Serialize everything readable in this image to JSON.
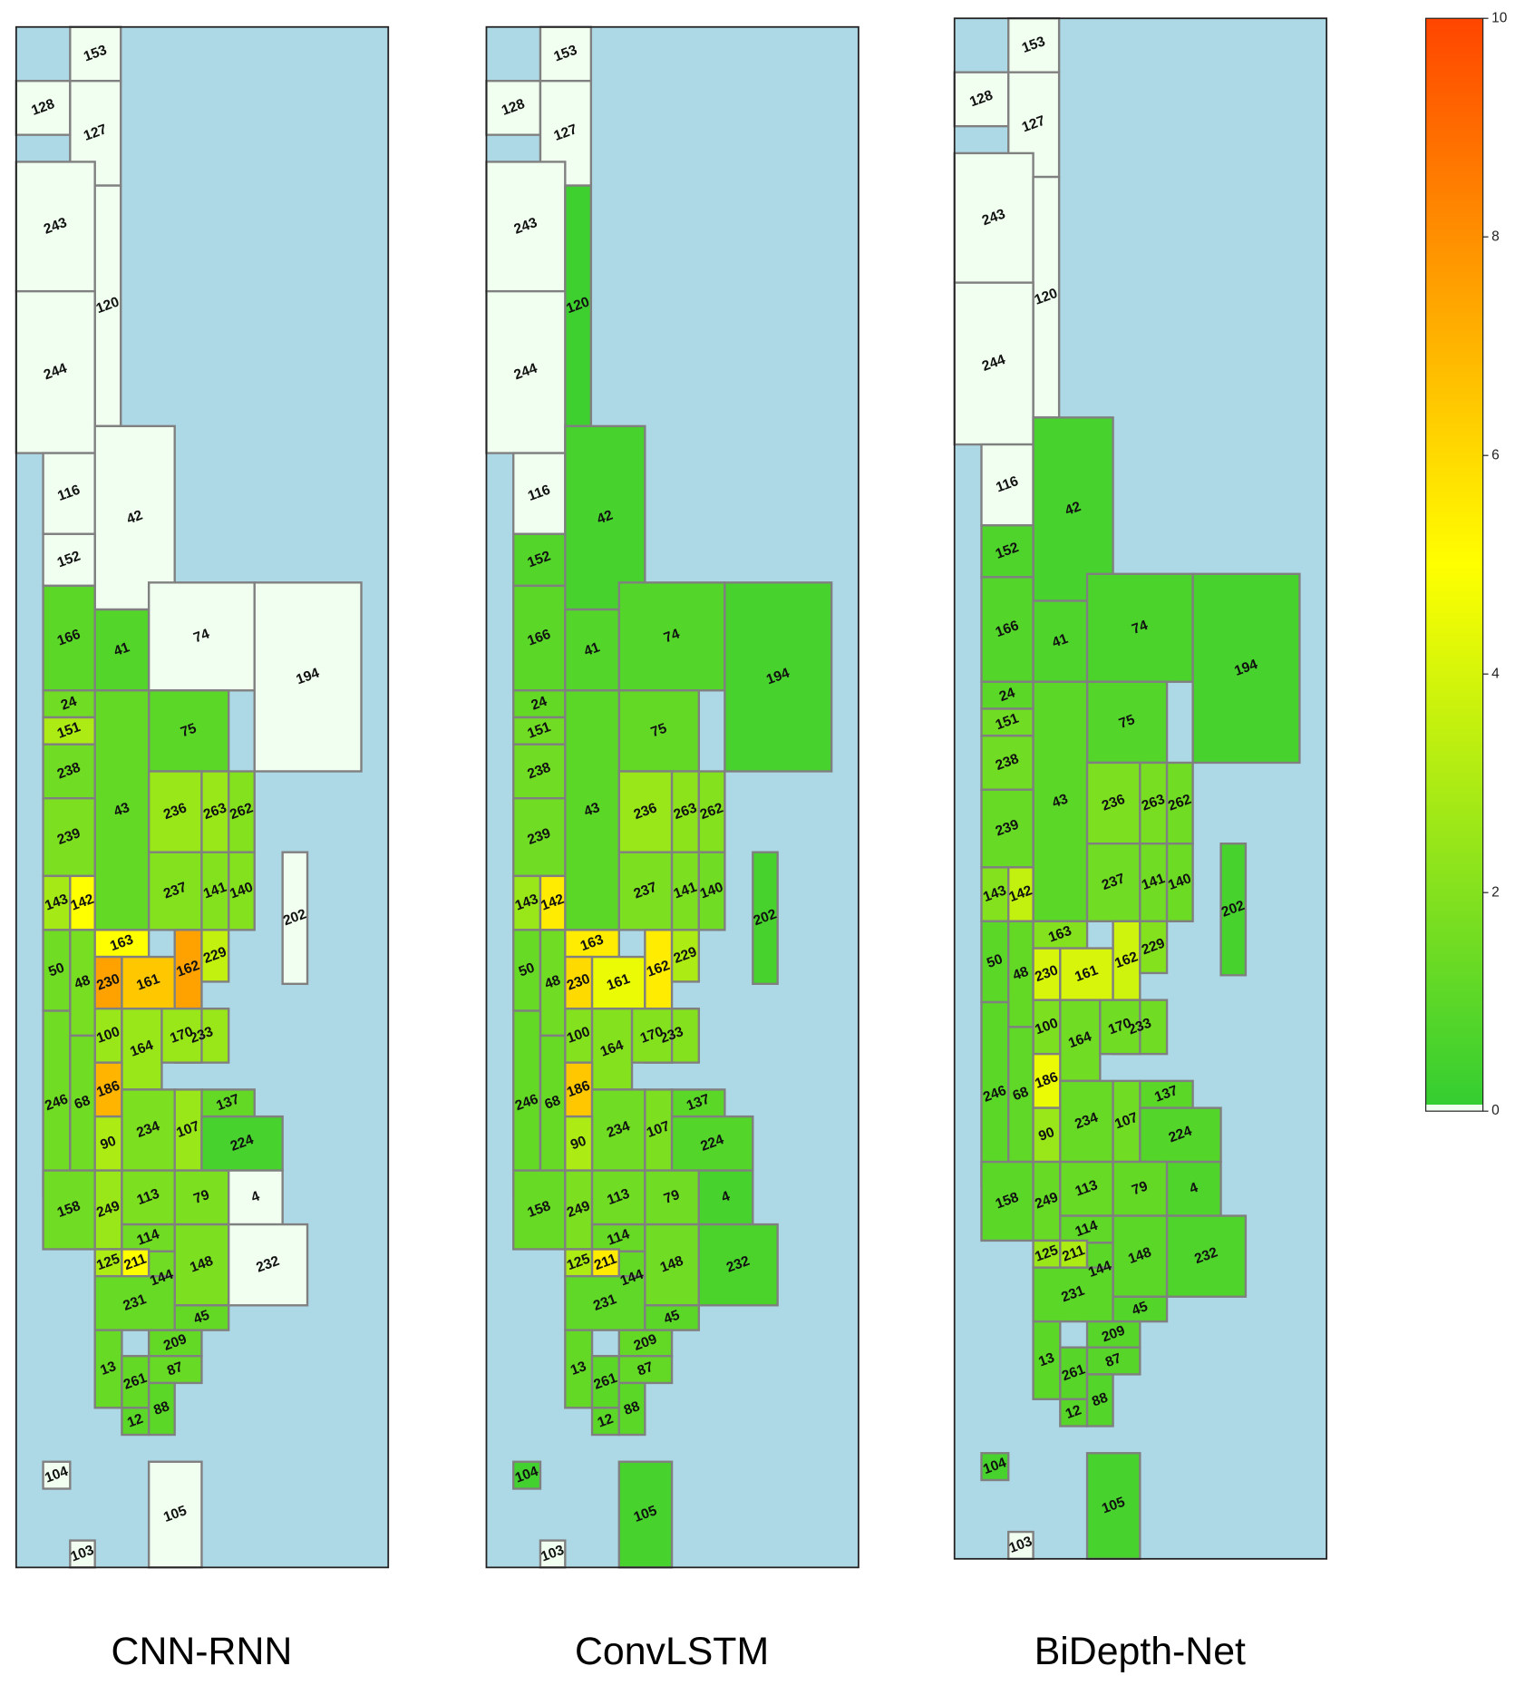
{
  "chart_data": {
    "type": "zone-map",
    "zones": [
      "153",
      "128",
      "127",
      "243",
      "120",
      "244",
      "116",
      "42",
      "152",
      "166",
      "41",
      "74",
      "194",
      "24",
      "151",
      "75",
      "238",
      "43",
      "236",
      "263",
      "262",
      "239",
      "237",
      "141",
      "140",
      "202",
      "143",
      "142",
      "50",
      "48",
      "163",
      "230",
      "161",
      "162",
      "229",
      "233",
      "100",
      "164",
      "170",
      "246",
      "68",
      "186",
      "137",
      "234",
      "107",
      "90",
      "224",
      "158",
      "249",
      "113",
      "79",
      "4",
      "114",
      "125",
      "211",
      "144",
      "148",
      "232",
      "231",
      "45",
      "209",
      "13",
      "261",
      "87",
      "12",
      "88",
      "104",
      "105",
      "103"
    ],
    "panels": [
      {
        "title": "CNN-RNN",
        "values": [
          0,
          0,
          0,
          0,
          0,
          0,
          0,
          0,
          0,
          1,
          0.8,
          0,
          0,
          1.5,
          3,
          1,
          1.5,
          1.2,
          2.5,
          2.5,
          2,
          1.8,
          2,
          2,
          2,
          0,
          2.8,
          5,
          1.5,
          1.7,
          5,
          7.5,
          6.5,
          7.5,
          3.5,
          2.5,
          2.5,
          2.5,
          2.5,
          1.5,
          1.5,
          7,
          1.2,
          1.8,
          2.5,
          3,
          0.5,
          1.5,
          2.5,
          1.8,
          1.8,
          0,
          1.5,
          3,
          5,
          1.5,
          1.8,
          0,
          1.3,
          1.2,
          1.2,
          1.3,
          1.2,
          1.3,
          1,
          1,
          0,
          0,
          0
        ]
      },
      {
        "title": "ConvLSTM",
        "values": [
          0,
          0,
          0,
          0,
          0.3,
          0,
          0,
          0.5,
          0.8,
          1,
          0.8,
          0.8,
          0.5,
          1.2,
          1.5,
          1.2,
          1.5,
          1,
          2.5,
          2.2,
          2,
          1.5,
          1.8,
          1.8,
          1.5,
          0.5,
          2.5,
          5.5,
          1.3,
          1.5,
          5.5,
          6,
          4.5,
          5.5,
          3,
          2,
          2,
          2,
          2,
          1.2,
          1.3,
          6.5,
          1,
          1.5,
          1.8,
          3,
          0.8,
          1.3,
          1.8,
          1.5,
          1.5,
          0.5,
          1.3,
          3,
          5.5,
          1.2,
          1.5,
          0.6,
          1.1,
          1,
          1.2,
          1.2,
          1,
          1.2,
          1,
          1,
          0.4,
          0.5,
          0
        ]
      },
      {
        "title": "BiDepth-Net",
        "values": [
          0,
          0,
          0,
          0,
          0,
          0,
          0,
          0.5,
          0.7,
          0.8,
          0.7,
          0.6,
          0.5,
          1,
          1.5,
          0.8,
          1.5,
          1,
          1.8,
          1.7,
          1.5,
          1.3,
          1.5,
          1.5,
          1.4,
          0.5,
          2,
          3.5,
          1,
          1.2,
          2,
          4,
          4,
          3.8,
          2,
          1.5,
          1.8,
          1.5,
          1.5,
          1,
          1.1,
          4.5,
          1,
          1.3,
          1.5,
          2.5,
          0.8,
          1,
          1.3,
          1.3,
          1.2,
          0.7,
          1.1,
          2.5,
          3,
          1,
          1,
          0.7,
          1,
          0.8,
          0.9,
          1,
          0.9,
          0.9,
          0.9,
          0.8,
          0.5,
          0.5,
          0
        ]
      }
    ],
    "colorbar": {
      "lim": [
        0,
        10
      ],
      "ticks": [
        0,
        2,
        4,
        6,
        8,
        10
      ]
    },
    "colormap": [
      "#32cd32",
      "#ffff00",
      "#ff4500"
    ],
    "zero_color": "#f0fff0",
    "background_color": "#add8e6"
  }
}
